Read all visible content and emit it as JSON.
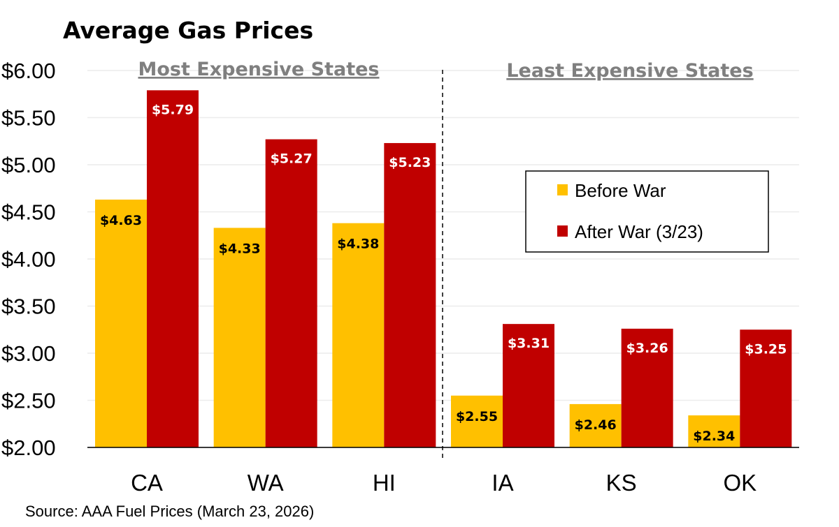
{
  "chart_data": {
    "type": "bar",
    "title": "Average Gas Prices",
    "categories": [
      "CA",
      "WA",
      "HI",
      "IA",
      "KS",
      "OK"
    ],
    "series": [
      {
        "name": "Before War",
        "color": "#FFC000",
        "values": [
          4.63,
          4.33,
          4.38,
          2.55,
          2.46,
          2.34
        ],
        "labels": [
          "$4.63",
          "$4.33",
          "$4.38",
          "$2.55",
          "$2.46",
          "$2.34"
        ]
      },
      {
        "name": "After War (3/23)",
        "color": "#C00000",
        "values": [
          5.79,
          5.27,
          5.23,
          3.31,
          3.26,
          3.25
        ],
        "labels": [
          "$5.79",
          "$5.27",
          "$5.23",
          "$3.31",
          "$3.26",
          "$3.25"
        ]
      }
    ],
    "ylim": [
      2.0,
      6.0
    ],
    "yticks": [
      2.0,
      2.5,
      3.0,
      3.5,
      4.0,
      4.5,
      5.0,
      5.5,
      6.0
    ],
    "ytick_labels": [
      "$2.00",
      "$2.50",
      "$3.00",
      "$3.50",
      "$4.00",
      "$4.50",
      "$5.00",
      "$5.50",
      "$6.00"
    ],
    "xlabel": "",
    "ylabel": "",
    "grid": true,
    "legend_position": "right",
    "annotations": {
      "left_section": "Most Expensive States",
      "right_section": "Least Expensive States"
    },
    "source": "Source: AAA Fuel Prices (March 23, 2026)"
  }
}
